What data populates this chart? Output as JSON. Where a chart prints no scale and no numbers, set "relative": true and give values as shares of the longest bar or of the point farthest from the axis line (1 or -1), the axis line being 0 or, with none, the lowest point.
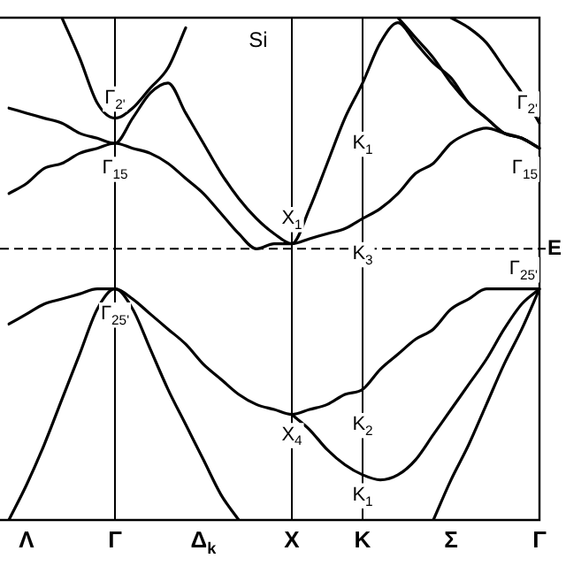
{
  "chart_data": {
    "type": "line",
    "relative": true,
    "color": "#000000",
    "marker": "none",
    "line_style": "solid",
    "legend": false,
    "categories": [
      null,
      "Λ",
      null,
      null,
      null,
      null,
      "Γ",
      null,
      null,
      null,
      null,
      "Δ$_{k}$",
      null,
      null,
      null,
      null,
      "X",
      null,
      null,
      null,
      "K",
      null,
      null,
      null,
      null,
      "Σ",
      null,
      null,
      null,
      null,
      "Γ"
    ],
    "series": [
      {
        "values": [
          null,
          null,
          null,
          1,
          0.92,
          0.83,
          0.8,
          0.82,
          0.86,
          0.9,
          0.98,
          null,
          null,
          null,
          null,
          null,
          null,
          null,
          null,
          null,
          null,
          null,
          null,
          null,
          null,
          null,
          null,
          null,
          null,
          null,
          null
        ]
      },
      {
        "values": [
          0.82,
          0.81,
          0.8,
          0.79,
          0.77,
          0.76,
          0.75,
          0.8,
          0.85,
          0.87,
          0.81,
          0.75,
          0.69,
          0.64,
          0.6,
          0.57,
          0.55,
          0.62,
          0.71,
          0.8,
          0.87,
          0.95,
          0.99,
          0.95,
          0.91,
          0.88,
          0.83,
          0.8,
          0.77,
          0.76,
          0.74
        ]
      },
      {
        "values": [
          null,
          null,
          null,
          null,
          null,
          null,
          null,
          null,
          null,
          null,
          null,
          null,
          null,
          null,
          null,
          null,
          null,
          null,
          null,
          null,
          null,
          null,
          1,
          0.96,
          0.92,
          0.87,
          0.83,
          0.8,
          0.77,
          0.76,
          0.74
        ]
      },
      {
        "values": [
          0.65,
          0.67,
          0.7,
          0.71,
          0.73,
          0.74,
          0.75,
          0.74,
          0.73,
          0.71,
          0.68,
          0.65,
          0.61,
          0.57,
          0.54,
          0.55,
          0.55,
          0.56,
          0.57,
          0.58,
          0.6,
          0.62,
          0.65,
          0.69,
          0.71,
          0.75,
          0.77,
          0.78,
          0.77,
          0.76,
          0.74
        ]
      },
      {
        "values": [
          null,
          null,
          null,
          null,
          null,
          null,
          null,
          null,
          null,
          null,
          null,
          null,
          null,
          null,
          null,
          null,
          null,
          null,
          null,
          null,
          null,
          null,
          null,
          null,
          null,
          1,
          0.98,
          0.95,
          0.9,
          0.85,
          0.79
        ]
      },
      {
        "values": [
          0.39,
          0.41,
          0.43,
          0.44,
          0.45,
          0.46,
          0.46,
          0.44,
          0.41,
          0.38,
          0.35,
          0.31,
          0.28,
          0.25,
          0.23,
          0.22,
          0.21,
          0.22,
          0.23,
          0.25,
          0.26,
          0.3,
          0.33,
          0.36,
          0.38,
          0.42,
          0.44,
          0.46,
          0.46,
          0.46,
          0.46
        ]
      },
      {
        "values": [
          0,
          0.07,
          0.15,
          0.24,
          0.33,
          0.42,
          0.46,
          0.42,
          0.34,
          0.26,
          0.19,
          0.12,
          0.05,
          0,
          null,
          null,
          null,
          null,
          null,
          null,
          null,
          null,
          null,
          null,
          null,
          null,
          null,
          null,
          null,
          null,
          null
        ]
      },
      {
        "values": [
          null,
          null,
          null,
          null,
          null,
          null,
          null,
          null,
          null,
          null,
          null,
          null,
          null,
          null,
          null,
          null,
          0.21,
          0.18,
          0.14,
          0.11,
          0.09,
          0.08,
          0.09,
          0.12,
          0.17,
          0.22,
          0.27,
          0.32,
          0.38,
          0.43,
          0.46
        ]
      },
      {
        "values": [
          null,
          null,
          null,
          null,
          null,
          null,
          null,
          null,
          null,
          null,
          null,
          null,
          null,
          null,
          null,
          null,
          null,
          null,
          null,
          null,
          null,
          null,
          null,
          null,
          0,
          0.08,
          0.15,
          0.23,
          0.31,
          0.38,
          0.46
        ]
      }
    ],
    "ref_lines": [
      {
        "axis": "x",
        "value": "Γ",
        "label": null
      },
      {
        "axis": "x",
        "value": "X",
        "label": null
      },
      {
        "axis": "x",
        "value": "K",
        "label": null
      },
      {
        "axis": "y",
        "value": 0.54,
        "label": "E",
        "line_style": "dashed"
      }
    ],
    "annotations": [
      "Si",
      {
        "text": "Γ$_{2'}$",
        "x": "Γ",
        "y": 0.84
      },
      {
        "text": "Γ$_{15}$",
        "x": "Γ",
        "y": 0.7
      },
      {
        "text": "X$_{1}$",
        "x": "X",
        "y": 0.6
      },
      {
        "text": "K$_{1}$",
        "x": "K",
        "y": 0.75
      },
      {
        "text": "K$_{3}$",
        "x": "K",
        "y": 0.53
      },
      {
        "text": "Γ$_{25'}$",
        "x": "Γ",
        "y": 0.41
      },
      {
        "text": "X$_{4}$",
        "x": "X",
        "y": 0.17
      },
      {
        "text": "K$_{2}$",
        "x": "K",
        "y": 0.19
      },
      {
        "text": "K$_{1}$",
        "x": "K",
        "y": 0.05
      },
      {
        "text": "Γ$_{2'}$",
        "y": 0.83
      },
      {
        "text": "Γ$_{15}$",
        "y": 0.7
      },
      {
        "text": "Γ$_{25'}$",
        "y": 0.5
      }
    ]
  }
}
